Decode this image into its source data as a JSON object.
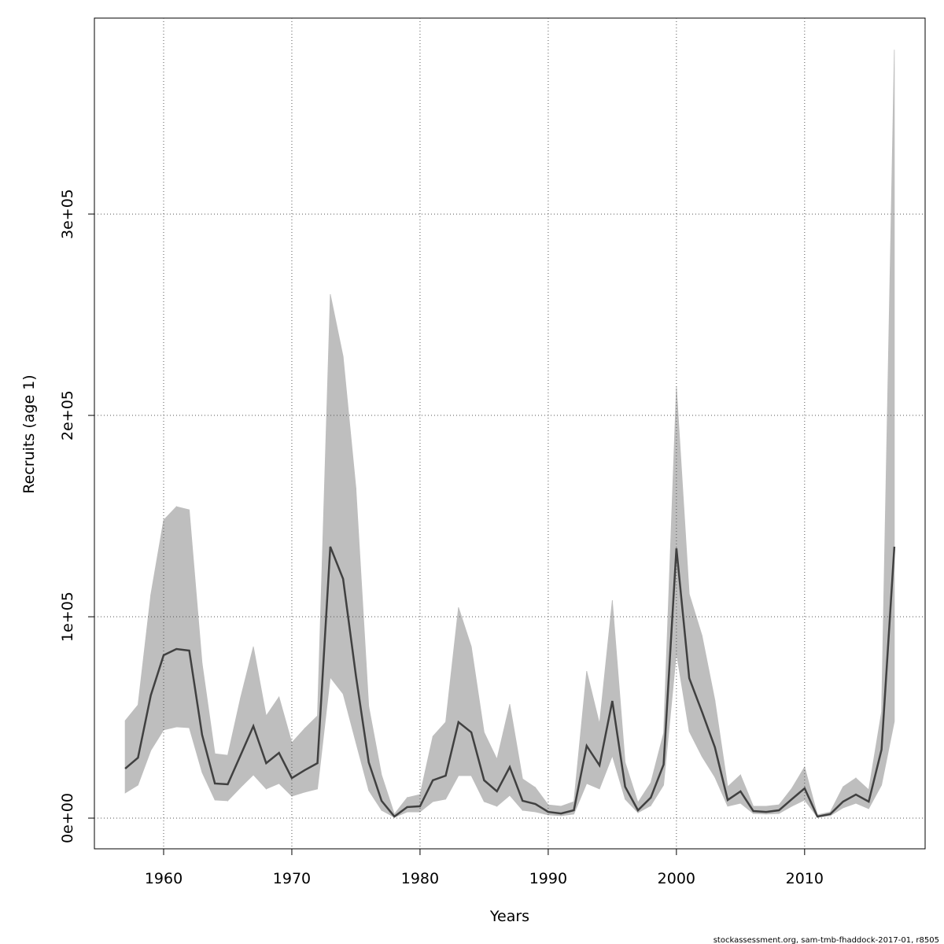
{
  "chart_data": {
    "type": "line",
    "xlabel": "Years",
    "ylabel": "Recruits (age 1)",
    "footnote": "stockassessment.org, sam-tmb-fhaddock-2017-01, r8505",
    "x": [
      1957,
      1958,
      1959,
      1960,
      1961,
      1962,
      1963,
      1964,
      1965,
      1966,
      1967,
      1968,
      1969,
      1970,
      1971,
      1972,
      1973,
      1974,
      1975,
      1976,
      1977,
      1978,
      1979,
      1980,
      1981,
      1982,
      1983,
      1984,
      1985,
      1986,
      1987,
      1988,
      1989,
      1990,
      1991,
      1992,
      1993,
      1994,
      1995,
      1996,
      1997,
      1998,
      1999,
      2000,
      2001,
      2002,
      2003,
      2004,
      2005,
      2006,
      2007,
      2008,
      2009,
      2010,
      2011,
      2012,
      2013,
      2014,
      2015,
      2016,
      2017
    ],
    "values": [
      24600,
      30000,
      61000,
      80900,
      84000,
      83200,
      41400,
      17200,
      16800,
      31200,
      45700,
      27300,
      32400,
      19900,
      23800,
      27300,
      134800,
      118800,
      70700,
      27700,
      8600,
      800,
      5500,
      5900,
      18800,
      21100,
      47700,
      42600,
      18800,
      13300,
      25400,
      8600,
      7000,
      3100,
      2300,
      3900,
      35900,
      26200,
      58200,
      15600,
      3900,
      10200,
      26600,
      134000,
      69500,
      52700,
      35200,
      9000,
      13300,
      3500,
      3100,
      3900,
      9400,
      14800,
      800,
      2000,
      8200,
      11700,
      8200,
      34000,
      134800
    ],
    "band": {
      "lower": [
        12500,
        16400,
        33600,
        43800,
        45300,
        44900,
        22700,
        9000,
        8600,
        15200,
        21500,
        14500,
        17200,
        10900,
        12900,
        14500,
        69900,
        61700,
        37500,
        13700,
        3900,
        400,
        3100,
        3100,
        8200,
        9400,
        21100,
        21100,
        8200,
        5900,
        11300,
        3900,
        3100,
        1600,
        1200,
        2000,
        17200,
        14500,
        30900,
        9400,
        2700,
        6200,
        16400,
        82000,
        43000,
        30500,
        20300,
        5900,
        7400,
        2300,
        2000,
        2300,
        5900,
        9000,
        400,
        1200,
        5100,
        7400,
        4700,
        16400,
        48000
      ],
      "upper": [
        48400,
        56200,
        111000,
        148000,
        154700,
        153100,
        77000,
        32000,
        31200,
        59800,
        85200,
        50800,
        60200,
        37500,
        44500,
        50800,
        260200,
        229300,
        164000,
        55500,
        21500,
        2000,
        10200,
        11700,
        40600,
        47700,
        104700,
        85200,
        42600,
        29300,
        56600,
        19500,
        15200,
        6600,
        5900,
        8200,
        73000,
        46900,
        108200,
        27700,
        7800,
        17600,
        42200,
        214100,
        111300,
        90600,
        58600,
        15600,
        21500,
        5900,
        5900,
        6600,
        14800,
        25400,
        1600,
        3100,
        15600,
        19900,
        14100,
        52700,
        381600
      ]
    },
    "color": "#404040",
    "band_color": "#bebebe",
    "xlim": [
      1954.6,
      2019.4
    ],
    "xticks": [
      1960,
      1970,
      1980,
      1990,
      2000,
      2010
    ],
    "ylim": [
      -15234,
      397300
    ],
    "yticks": [
      {
        "value": 0,
        "label": "0e+00"
      },
      {
        "value": 100000,
        "label": "1e+05"
      },
      {
        "value": 200000,
        "label": "2e+05"
      },
      {
        "value": 300000,
        "label": "3e+05"
      }
    ],
    "grid": true
  }
}
